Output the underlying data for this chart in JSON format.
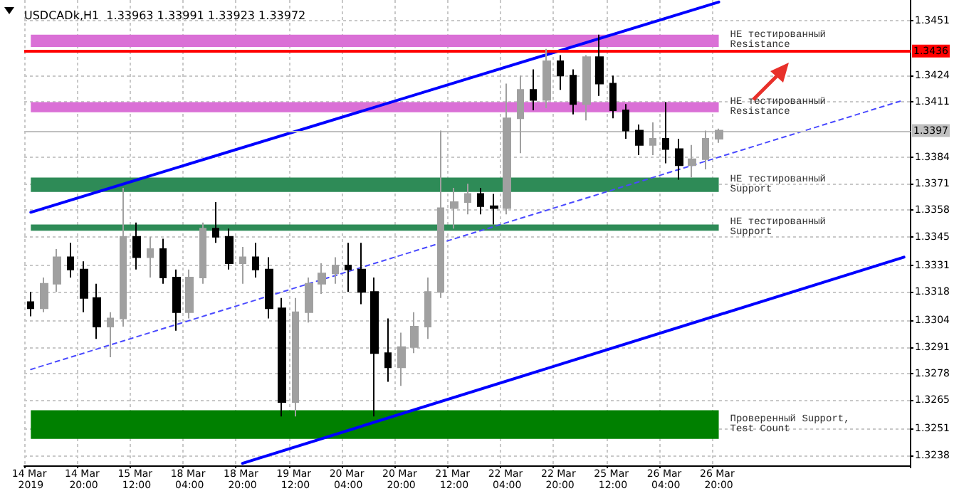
{
  "chart_data": {
    "type": "candlestick",
    "title": "USDCADk,H1  1.33963 1.33991 1.33923 1.33972",
    "categories": [
      "14 Mar 2019",
      null,
      null,
      null,
      "14 Mar 20:00",
      null,
      null,
      null,
      "15 Mar 12:00",
      null,
      null,
      null,
      "18 Mar 04:00",
      null,
      null,
      null,
      "18 Mar 20:00",
      null,
      null,
      null,
      "19 Mar 12:00",
      null,
      null,
      null,
      "20 Mar 04:00",
      null,
      null,
      null,
      "20 Mar 20:00",
      null,
      null,
      null,
      "21 Mar 12:00",
      null,
      null,
      null,
      "22 Mar 04:00",
      null,
      null,
      null,
      "22 Mar 20:00",
      null,
      null,
      null,
      "25 Mar 12:00",
      null,
      null,
      null,
      "26 Mar 04:00",
      null,
      null,
      null,
      "26 Mar 20:00",
      null,
      null,
      null,
      null,
      null,
      null,
      null,
      null,
      null,
      null,
      null,
      null,
      null,
      null
    ],
    "ohlc": [
      [
        1.3313,
        1.3318,
        1.3306,
        1.331
      ],
      [
        1.331,
        1.3325,
        1.3308,
        1.3322
      ],
      [
        1.3322,
        1.3339,
        1.3318,
        1.3335
      ],
      [
        1.3335,
        1.3342,
        1.3325,
        1.3329
      ],
      [
        1.3329,
        1.3333,
        1.3308,
        1.3315
      ],
      [
        1.3315,
        1.3322,
        1.3295,
        1.3301
      ],
      [
        1.3301,
        1.3308,
        1.3286,
        1.3305
      ],
      [
        1.3305,
        1.3369,
        1.3301,
        1.3345
      ],
      [
        1.3345,
        1.3352,
        1.3329,
        1.3335
      ],
      [
        1.3335,
        1.3345,
        1.3325,
        1.3339
      ],
      [
        1.3339,
        1.3344,
        1.3322,
        1.3325
      ],
      [
        1.3325,
        1.3329,
        1.3299,
        1.3308
      ],
      [
        1.3308,
        1.3329,
        1.3305,
        1.3325
      ],
      [
        1.3325,
        1.3352,
        1.3322,
        1.3349
      ],
      [
        1.3349,
        1.3362,
        1.3342,
        1.3345
      ],
      [
        1.3345,
        1.3349,
        1.3329,
        1.3332
      ],
      [
        1.3332,
        1.334,
        1.3322,
        1.3335
      ],
      [
        1.3335,
        1.3342,
        1.3325,
        1.3329
      ],
      [
        1.3329,
        1.3335,
        1.3305,
        1.331
      ],
      [
        1.331,
        1.3315,
        1.3257,
        1.3264
      ],
      [
        1.3264,
        1.3315,
        1.3257,
        1.3308
      ],
      [
        1.3308,
        1.3325,
        1.3303,
        1.3322
      ],
      [
        1.3322,
        1.3332,
        1.3317,
        1.3327
      ],
      [
        1.3327,
        1.3335,
        1.3322,
        1.3331
      ],
      [
        1.3331,
        1.3342,
        1.3318,
        1.3329
      ],
      [
        1.3329,
        1.3342,
        1.3312,
        1.3318
      ],
      [
        1.3318,
        1.3325,
        1.3257,
        1.3288
      ],
      [
        1.3288,
        1.3305,
        1.3274,
        1.3281
      ],
      [
        1.3281,
        1.3298,
        1.3272,
        1.3291
      ],
      [
        1.3291,
        1.3308,
        1.3288,
        1.3301
      ],
      [
        1.3301,
        1.3325,
        1.3295,
        1.3318
      ],
      [
        1.3318,
        1.3397,
        1.3315,
        1.3359
      ],
      [
        1.3359,
        1.3369,
        1.3349,
        1.3362
      ],
      [
        1.3362,
        1.3371,
        1.3356,
        1.3366
      ],
      [
        1.3366,
        1.3369,
        1.3356,
        1.336
      ],
      [
        1.336,
        1.3366,
        1.3351,
        1.3359
      ],
      [
        1.3359,
        1.342,
        1.3356,
        1.3403
      ],
      [
        1.3403,
        1.3424,
        1.3386,
        1.3417
      ],
      [
        1.3417,
        1.3427,
        1.3407,
        1.3412
      ],
      [
        1.3412,
        1.3437,
        1.3408,
        1.3431
      ],
      [
        1.3431,
        1.3434,
        1.3417,
        1.3424
      ],
      [
        1.3424,
        1.3427,
        1.3405,
        1.341
      ],
      [
        1.341,
        1.3434,
        1.3402,
        1.3433
      ],
      [
        1.3433,
        1.3444,
        1.3414,
        1.342
      ],
      [
        1.342,
        1.3424,
        1.3403,
        1.3407
      ],
      [
        1.3407,
        1.341,
        1.3393,
        1.3397
      ],
      [
        1.3397,
        1.34,
        1.3385,
        1.339
      ],
      [
        1.339,
        1.3401,
        1.3385,
        1.3393
      ],
      [
        1.3393,
        1.3411,
        1.3381,
        1.3388
      ],
      [
        1.3388,
        1.3393,
        1.3373,
        1.338
      ],
      [
        1.338,
        1.339,
        1.3374,
        1.3383
      ],
      [
        1.3383,
        1.3397,
        1.3378,
        1.3393
      ],
      [
        1.3393,
        1.3398,
        1.3391,
        1.3397
      ],
      null,
      null,
      null,
      null,
      null,
      null,
      null,
      null,
      null,
      null,
      null,
      null,
      null,
      null
    ],
    "colors": [
      "#000000",
      "#a0a0a0",
      "#a0a0a0",
      "#000000",
      "#000000",
      "#000000",
      "#a0a0a0",
      "#a0a0a0",
      "#000000",
      "#a0a0a0",
      "#000000",
      "#000000",
      "#a0a0a0",
      "#a0a0a0",
      "#000000",
      "#000000",
      "#a0a0a0",
      "#000000",
      "#000000",
      "#000000",
      "#a0a0a0",
      "#a0a0a0",
      "#a0a0a0",
      "#a0a0a0",
      "#000000",
      "#000000",
      "#000000",
      "#000000",
      "#a0a0a0",
      "#a0a0a0",
      "#a0a0a0",
      "#a0a0a0",
      "#a0a0a0",
      "#a0a0a0",
      "#000000",
      "#000000",
      "#a0a0a0",
      "#a0a0a0",
      "#000000",
      "#a0a0a0",
      "#000000",
      "#000000",
      "#a0a0a0",
      "#000000",
      "#000000",
      "#000000",
      "#000000",
      "#a0a0a0",
      "#000000",
      "#000000",
      "#a0a0a0",
      "#a0a0a0",
      "#a0a0a0",
      null,
      null,
      null,
      null,
      null,
      null,
      null,
      null,
      null,
      null,
      null,
      null,
      null,
      null
    ],
    "series": [
      {
        "type": "line",
        "color": "#0000ff",
        "values": [
          1.3357,
          null,
          null,
          null,
          null,
          null,
          null,
          null,
          null,
          null,
          null,
          null,
          null,
          null,
          null,
          null,
          null,
          null,
          null,
          null,
          null,
          null,
          null,
          null,
          null,
          null,
          null,
          null,
          null,
          null,
          null,
          null,
          null,
          null,
          null,
          null,
          null,
          null,
          null,
          null,
          null,
          null,
          null,
          null,
          null,
          null,
          null,
          null,
          null,
          null,
          null,
          null,
          1.346,
          null,
          null,
          null,
          null,
          null,
          null,
          null,
          null,
          null,
          null,
          null,
          null,
          null,
          null
        ]
      },
      {
        "type": "line",
        "color": "#0000ff",
        "values": [
          null,
          null,
          null,
          null,
          null,
          null,
          null,
          null,
          null,
          null,
          null,
          null,
          null,
          null,
          null,
          null,
          1.3234,
          null,
          null,
          null,
          null,
          null,
          null,
          null,
          null,
          null,
          null,
          null,
          null,
          null,
          null,
          null,
          null,
          null,
          null,
          null,
          null,
          null,
          null,
          null,
          null,
          null,
          null,
          null,
          null,
          null,
          null,
          null,
          null,
          null,
          null,
          null,
          null,
          null,
          null,
          null,
          null,
          null,
          null,
          null,
          null,
          null,
          null,
          null,
          null,
          null,
          1.3335
        ]
      },
      {
        "type": "line",
        "color": "#4a4aff",
        "line_style": "dashed",
        "values": [
          1.328,
          null,
          null,
          null,
          null,
          null,
          null,
          null,
          null,
          null,
          null,
          null,
          null,
          null,
          null,
          null,
          null,
          null,
          null,
          null,
          null,
          null,
          null,
          null,
          null,
          null,
          null,
          null,
          null,
          null,
          null,
          null,
          null,
          null,
          null,
          null,
          null,
          null,
          null,
          null,
          null,
          null,
          null,
          null,
          null,
          null,
          null,
          null,
          null,
          null,
          null,
          null,
          null,
          null,
          null,
          null,
          null,
          null,
          null,
          null,
          null,
          null,
          null,
          null,
          null,
          null,
          1.3412
        ]
      }
    ],
    "ylim": [
      1.3233,
      1.3461
    ],
    "yticks": [
      1.3451,
      1.3424,
      1.3411,
      1.3384,
      1.3371,
      1.3358,
      1.3345,
      1.3331,
      1.3318,
      1.3304,
      1.3291,
      1.3278,
      1.3265,
      1.3251,
      1.3238
    ],
    "ref_lines": [
      {
        "axis": "y",
        "value": 1.3436,
        "label": "1.3436",
        "color": "#ff0000"
      },
      {
        "axis": "y",
        "value": 1.3397,
        "label": "1.3397",
        "color": "#c0c0c0"
      }
    ],
    "bands": [
      {
        "axis": "y",
        "from": 1.3438,
        "to": 1.3444,
        "label": "НЕ тестированный Resistance",
        "color": "#da70d6"
      },
      {
        "axis": "y",
        "from": 1.3406,
        "to": 1.3411,
        "label": "НЕ тестированный Resistance",
        "color": "#da70d6"
      },
      {
        "axis": "y",
        "from": 1.3367,
        "to": 1.3374,
        "label": "НЕ тестированный Support",
        "color": "#2e8b57"
      },
      {
        "axis": "y",
        "from": 1.3348,
        "to": 1.3351,
        "label": "НЕ тестированный Support",
        "color": "#2e8b57"
      },
      {
        "axis": "y",
        "from": 1.3246,
        "to": 1.326,
        "label": "Проверенный Support, Test Count",
        "color": "#008000"
      }
    ],
    "grid": true
  }
}
